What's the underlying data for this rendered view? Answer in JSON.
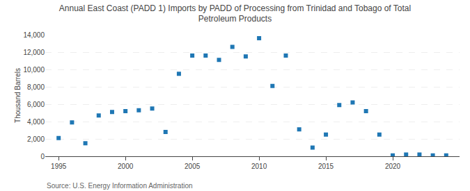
{
  "chart_data": {
    "type": "scatter",
    "title": "Annual East Coast (PADD 1) Imports by PADD of Processing from Trinidad and Tobago of Total\nPetroleum Products",
    "ylabel": "Thousand Barrels",
    "annotations": [
      "Source: U.S. Energy Information Administration"
    ],
    "x": [
      1995,
      1996,
      1997,
      1998,
      1999,
      2000,
      2001,
      2002,
      2003,
      2004,
      2005,
      2006,
      2007,
      2008,
      2009,
      2010,
      2011,
      2012,
      2013,
      2014,
      2015,
      2016,
      2017,
      2018,
      2019,
      2020,
      2021,
      2022,
      2023,
      2024
    ],
    "values": [
      2100,
      3900,
      1500,
      4700,
      5100,
      5200,
      5300,
      5500,
      2800,
      9500,
      11600,
      11600,
      11100,
      12600,
      11500,
      13600,
      8100,
      11600,
      3100,
      1000,
      2500,
      5900,
      6200,
      5200,
      2500,
      100,
      200,
      200,
      100,
      100
    ],
    "xlim": [
      1994,
      2025
    ],
    "xticks": [
      1995,
      2000,
      2005,
      2010,
      2015,
      2020
    ],
    "ylim": [
      0,
      14000
    ],
    "yticks": [
      0,
      {
        "value": 2000,
        "label": "2,000"
      },
      {
        "value": 4000,
        "label": "4,000"
      },
      {
        "value": 6000,
        "label": "6,000"
      },
      {
        "value": 8000,
        "label": "8,000"
      },
      {
        "value": 10000,
        "label": "10,000"
      },
      {
        "value": 12000,
        "label": "12,000"
      },
      {
        "value": 14000,
        "label": "14,000"
      }
    ],
    "marker": "square",
    "grid": true
  }
}
